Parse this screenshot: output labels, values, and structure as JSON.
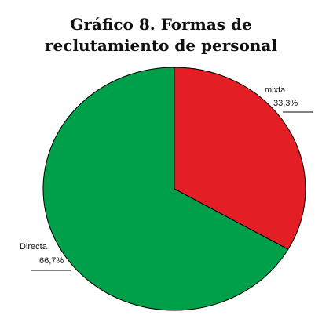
{
  "chart_data": {
    "type": "pie",
    "title": "Gráfico 8. Formas de reclutamiento de personal",
    "categories": [
      "mixta",
      "Directa"
    ],
    "values": [
      33.3,
      66.7
    ],
    "value_labels": [
      "33,3%",
      "66,7%"
    ],
    "colors": [
      "#e31e24",
      "#00a04b"
    ]
  }
}
